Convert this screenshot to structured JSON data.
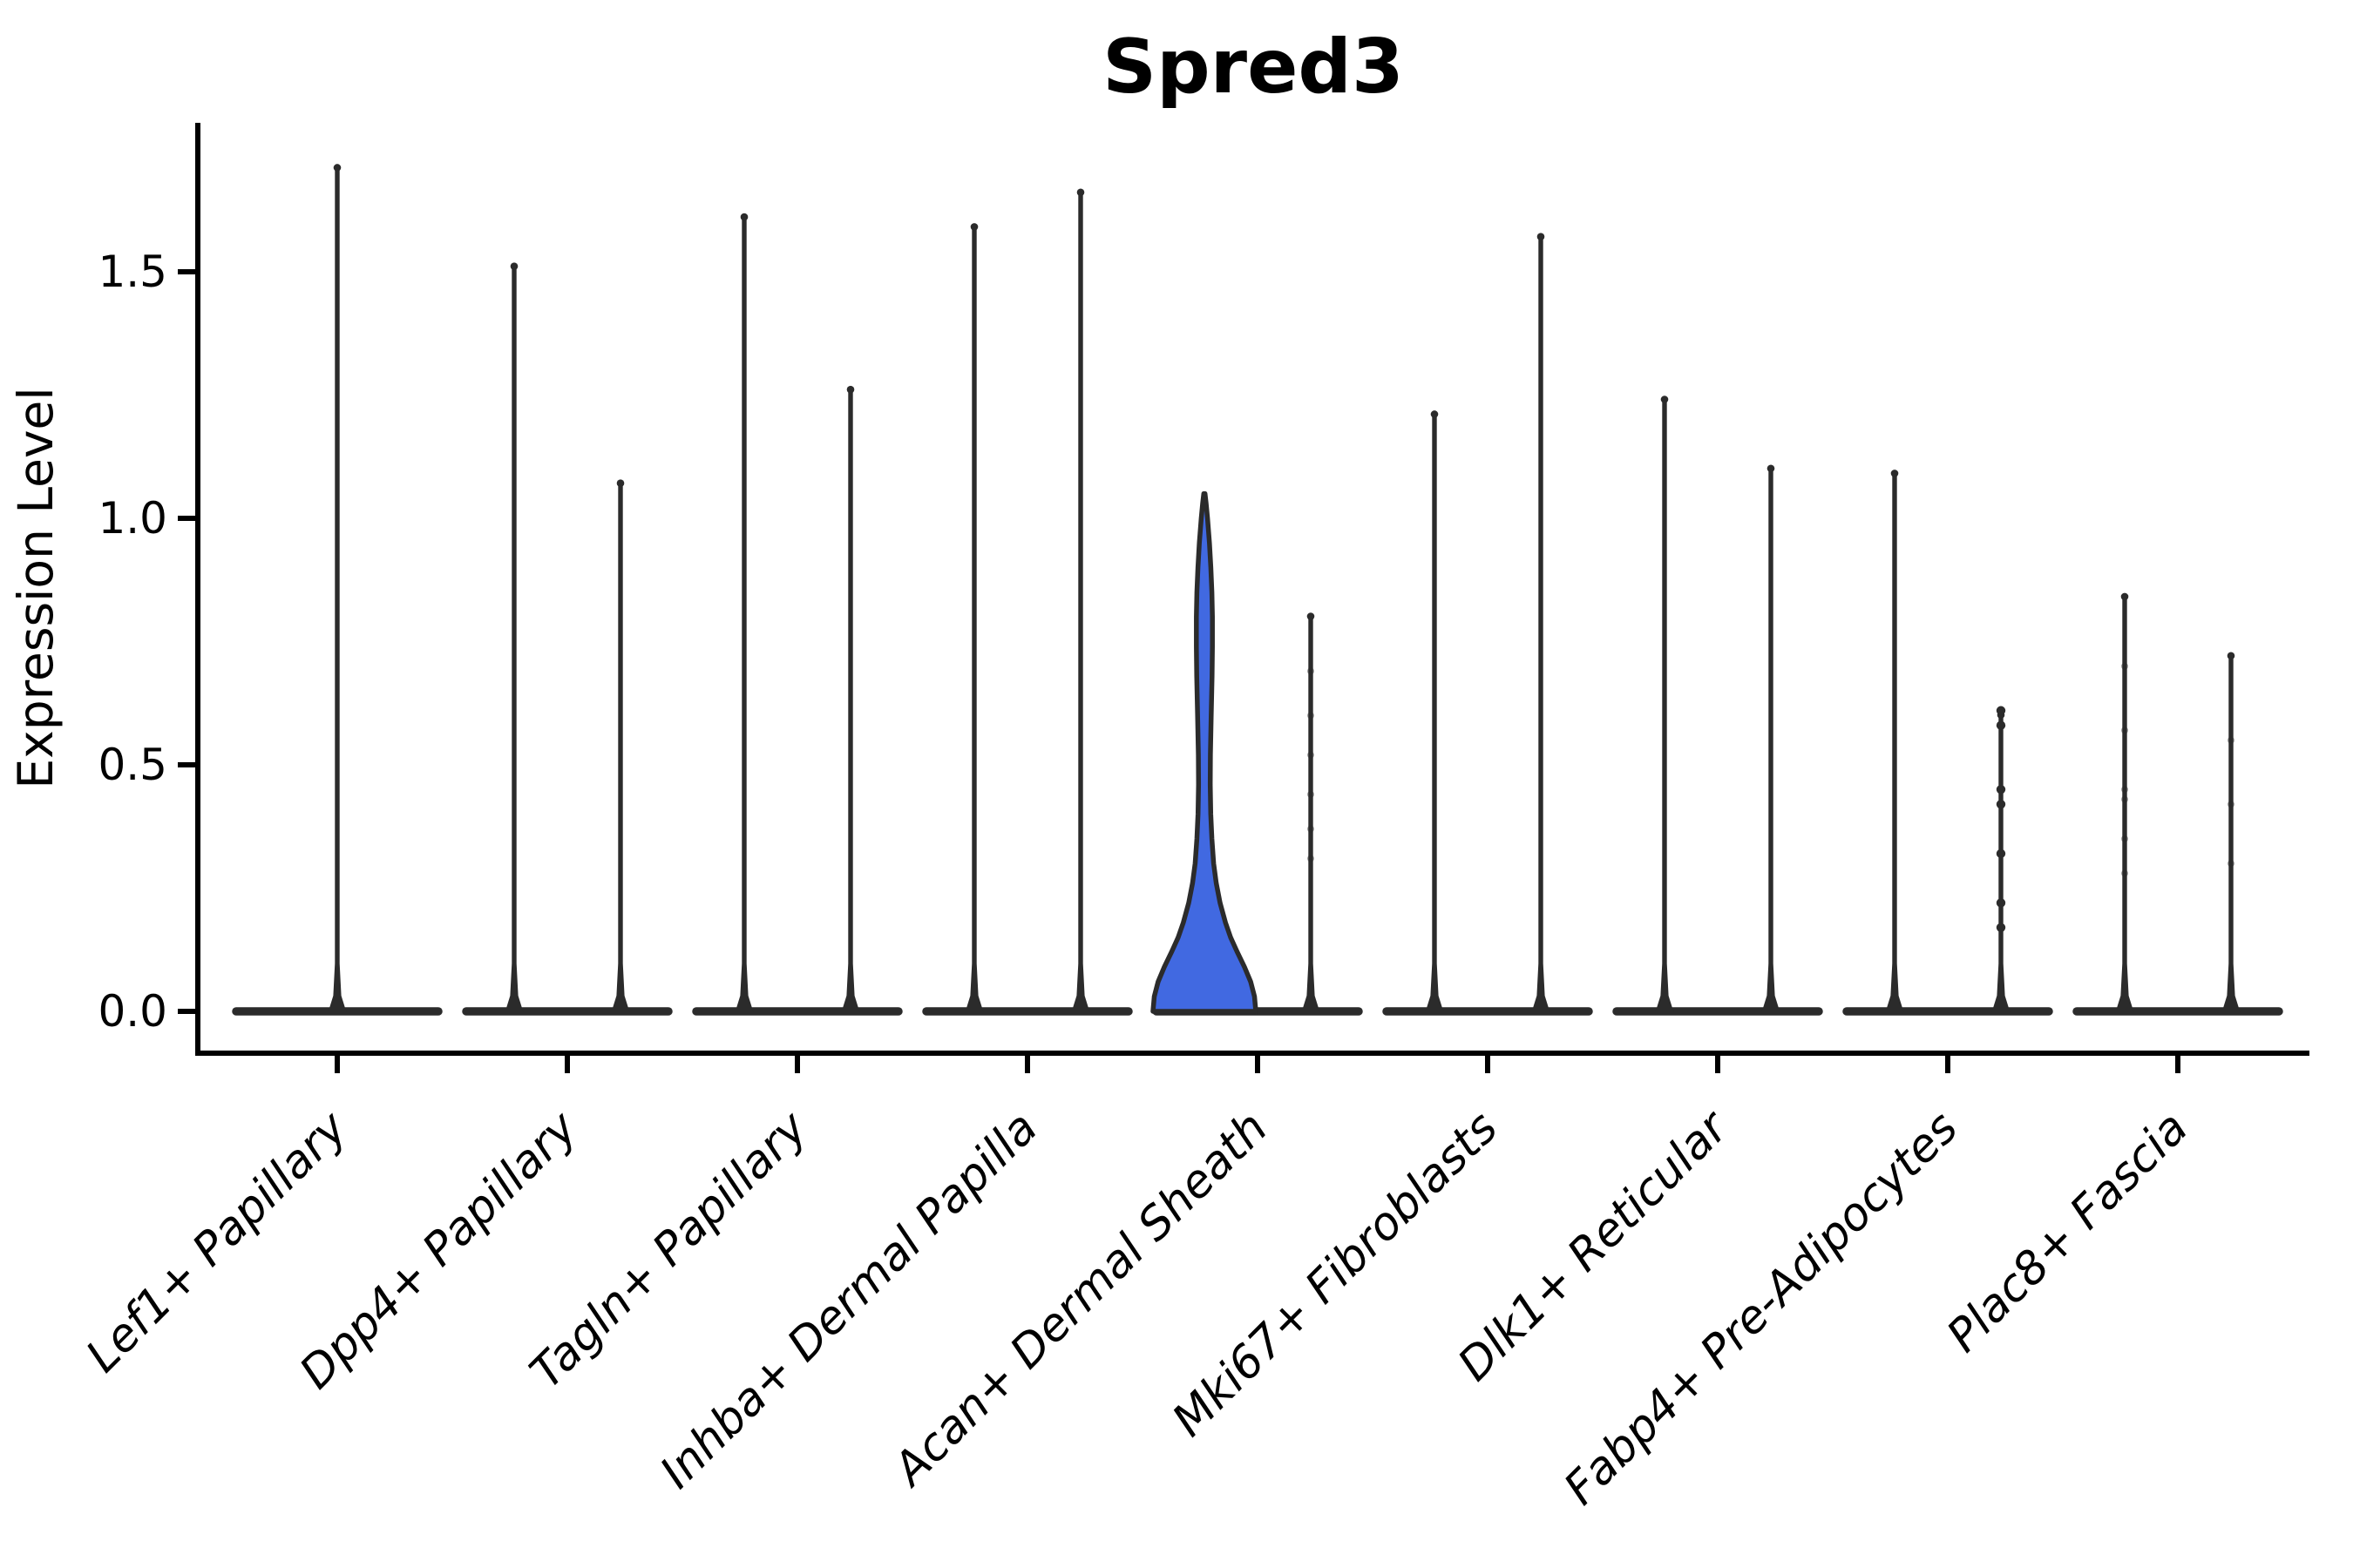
{
  "figure": {
    "background": "#ffffff",
    "violin_line_color": "#2b2b2b",
    "axis_color": "#000000",
    "highlight_fill": "#4169E1"
  },
  "chart_data": {
    "type": "violin",
    "title": "Spred3",
    "xlabel": "",
    "ylabel": "Expression Level",
    "yticks": [
      "0.0",
      "0.5",
      "1.0",
      "1.5"
    ],
    "ytick_values": [
      0.0,
      0.5,
      1.0,
      1.5
    ],
    "ylim": [
      -0.085,
      1.8
    ],
    "grid": false,
    "legend": "none",
    "categories": [
      "Lef1+ Papillary",
      "Dpp4+ Papillary",
      "Tagln+ Papillary",
      "Inhba+ Dermal Papilla",
      "Acan+ Dermal Sheath",
      "Mki67+ Fibroblasts",
      "Dlk1+ Reticular",
      "Fabp4+ Pre-Adipocytes",
      "Plac8+ Fascia"
    ],
    "description": "Violin plot of Spred3 expression; nearly all cells are zero so violins collapse to a flat base line with a thin spike to the maximum expressed value. Only the first Acan+ Dermal Sheath violin has visible density (blue filled).",
    "violins": [
      {
        "category": "Lef1+ Papillary",
        "group": 1,
        "groups_in_category": 1,
        "max": 1.72,
        "filled": false,
        "points": []
      },
      {
        "category": "Dpp4+ Papillary",
        "group": 1,
        "groups_in_category": 2,
        "max": 1.52,
        "filled": false,
        "points": []
      },
      {
        "category": "Dpp4+ Papillary",
        "group": 2,
        "groups_in_category": 2,
        "max": 1.08,
        "filled": false,
        "points": []
      },
      {
        "category": "Tagln+ Papillary",
        "group": 1,
        "groups_in_category": 2,
        "max": 1.62,
        "filled": false,
        "points": []
      },
      {
        "category": "Tagln+ Papillary",
        "group": 2,
        "groups_in_category": 2,
        "max": 1.27,
        "filled": false,
        "points": []
      },
      {
        "category": "Inhba+ Dermal Papilla",
        "group": 1,
        "groups_in_category": 2,
        "max": 1.6,
        "filled": false,
        "points": []
      },
      {
        "category": "Inhba+ Dermal Papilla",
        "group": 2,
        "groups_in_category": 2,
        "max": 1.67,
        "filled": false,
        "points": []
      },
      {
        "category": "Acan+ Dermal Sheath",
        "group": 1,
        "groups_in_category": 2,
        "max": 1.05,
        "filled": true,
        "profile": [
          [
            0.0,
            1.0
          ],
          [
            0.03,
            0.975
          ],
          [
            0.06,
            0.9
          ],
          [
            0.09,
            0.78
          ],
          [
            0.12,
            0.64
          ],
          [
            0.15,
            0.51
          ],
          [
            0.18,
            0.41
          ],
          [
            0.22,
            0.305
          ],
          [
            0.26,
            0.23
          ],
          [
            0.3,
            0.18
          ],
          [
            0.35,
            0.145
          ],
          [
            0.4,
            0.124
          ],
          [
            0.46,
            0.114
          ],
          [
            0.52,
            0.117
          ],
          [
            0.6,
            0.132
          ],
          [
            0.68,
            0.149
          ],
          [
            0.74,
            0.156
          ],
          [
            0.8,
            0.156
          ],
          [
            0.85,
            0.146
          ],
          [
            0.9,
            0.125
          ],
          [
            0.95,
            0.098
          ],
          [
            1.0,
            0.061
          ],
          [
            1.03,
            0.034
          ],
          [
            1.05,
            0.012
          ]
        ],
        "points": []
      },
      {
        "category": "Acan+ Dermal Sheath",
        "group": 2,
        "groups_in_category": 2,
        "max": 0.81,
        "filled": false,
        "points": [
          0.69,
          0.6,
          0.52,
          0.44,
          0.37,
          0.31
        ],
        "points_faint": true
      },
      {
        "category": "Mki67+ Fibroblasts",
        "group": 1,
        "groups_in_category": 2,
        "max": 1.22,
        "filled": false,
        "points": []
      },
      {
        "category": "Mki67+ Fibroblasts",
        "group": 2,
        "groups_in_category": 2,
        "max": 1.58,
        "filled": false,
        "points": []
      },
      {
        "category": "Dlk1+ Reticular",
        "group": 1,
        "groups_in_category": 2,
        "max": 1.25,
        "filled": false,
        "points": []
      },
      {
        "category": "Dlk1+ Reticular",
        "group": 2,
        "groups_in_category": 2,
        "max": 1.11,
        "filled": false,
        "points": []
      },
      {
        "category": "Fabp4+ Pre-Adipocytes",
        "group": 1,
        "groups_in_category": 2,
        "max": 1.1,
        "filled": false,
        "points": []
      },
      {
        "category": "Fabp4+ Pre-Adipocytes",
        "group": 2,
        "groups_in_category": 2,
        "max": 0.61,
        "filled": false,
        "points": [
          0.61,
          0.58,
          0.45,
          0.42,
          0.32,
          0.22,
          0.17
        ],
        "points_faint": false
      },
      {
        "category": "Plac8+ Fascia",
        "group": 1,
        "groups_in_category": 2,
        "max": 0.85,
        "filled": false,
        "points": [
          0.7,
          0.57,
          0.45,
          0.43,
          0.35,
          0.28
        ],
        "points_faint": true
      },
      {
        "category": "Plac8+ Fascia",
        "group": 2,
        "groups_in_category": 2,
        "max": 0.73,
        "filled": false,
        "points": [
          0.55,
          0.42,
          0.3
        ],
        "points_faint": true
      }
    ]
  }
}
